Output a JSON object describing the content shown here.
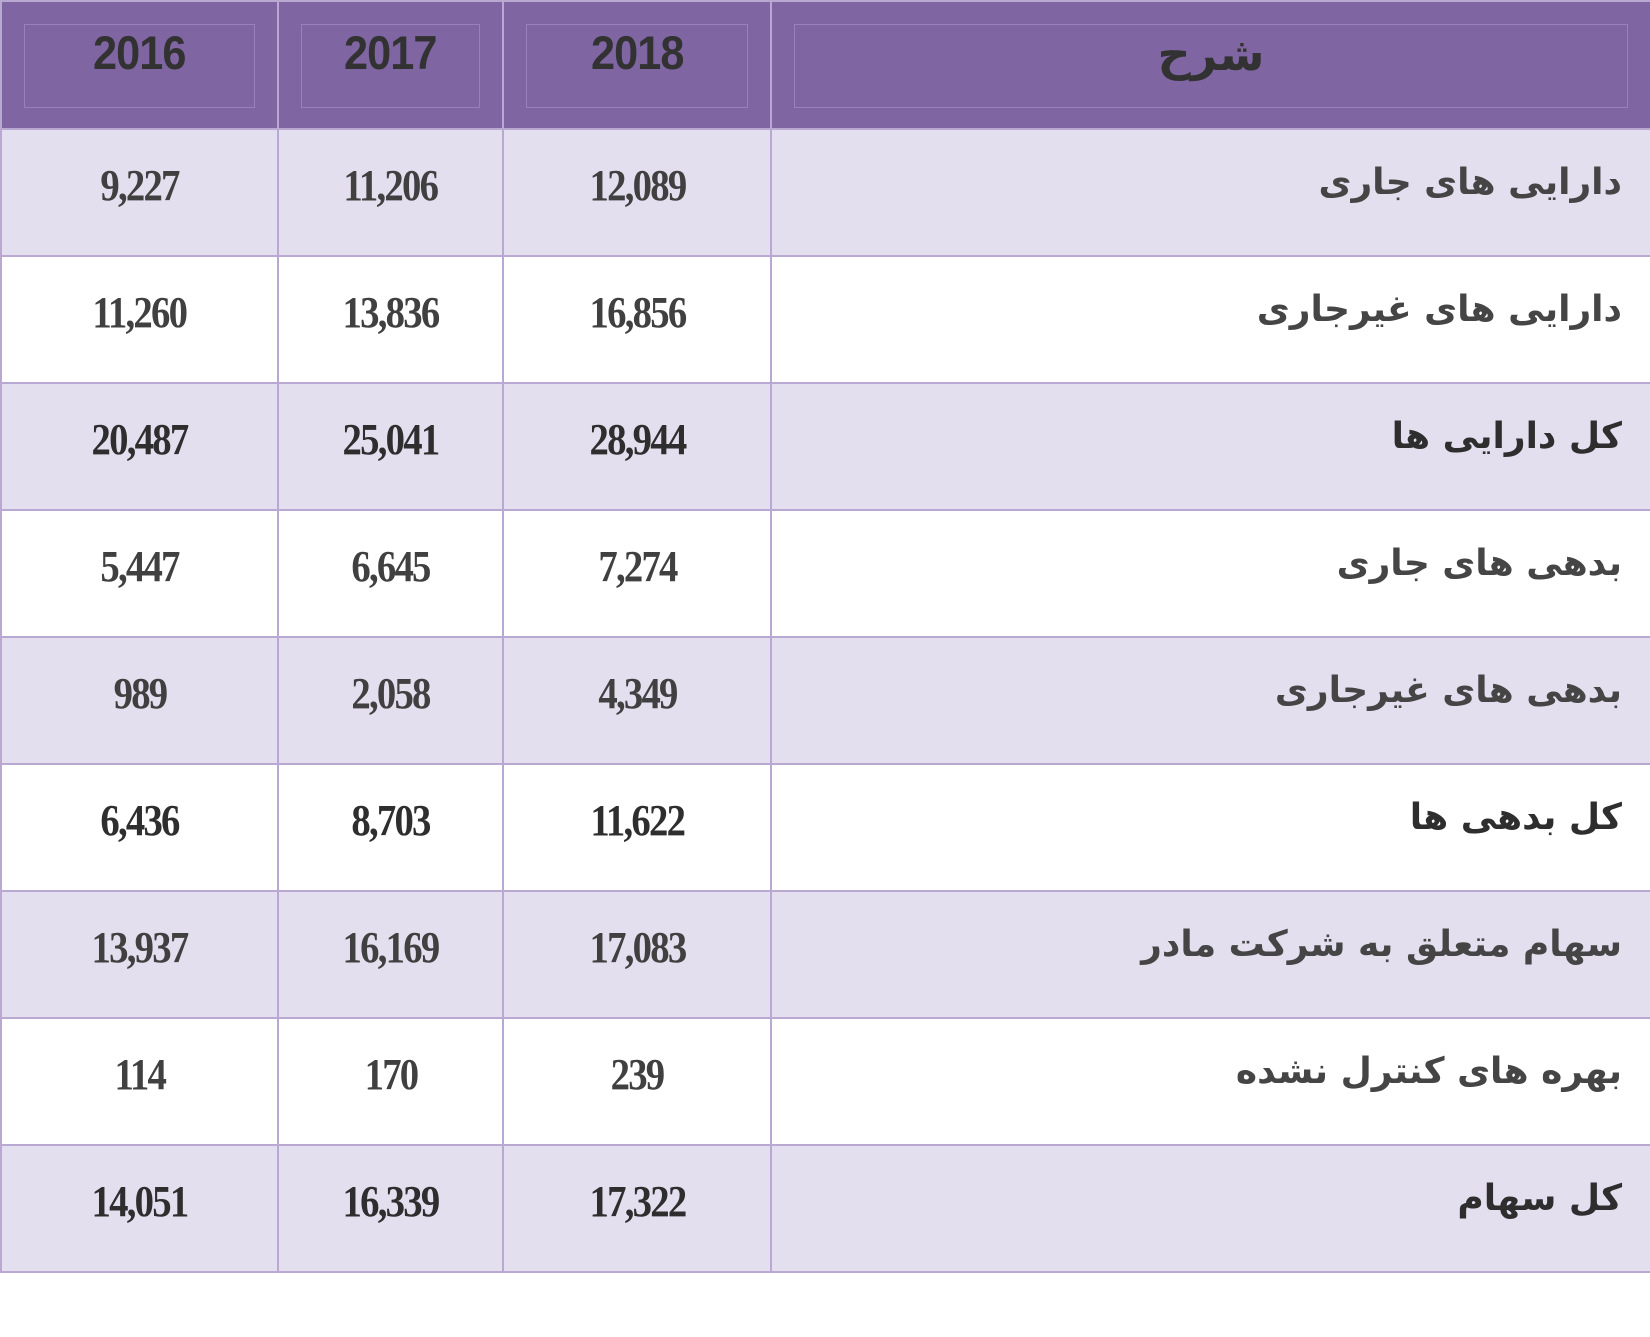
{
  "table": {
    "columns": {
      "y2016": "2016",
      "y2017": "2017",
      "y2018": "2018",
      "description": "شرح"
    },
    "rows": [
      {
        "label": "دارایی های جاری",
        "v2018": "12,089",
        "v2017": "11,206",
        "v2016": "9,227",
        "is_total": false
      },
      {
        "label": "دارایی های غیرجاری",
        "v2018": "16,856",
        "v2017": "13,836",
        "v2016": "11,260",
        "is_total": false
      },
      {
        "label": "کل دارایی ها",
        "v2018": "28,944",
        "v2017": "25,041",
        "v2016": "20,487",
        "is_total": true
      },
      {
        "label": "بدهی های جاری",
        "v2018": "7,274",
        "v2017": "6,645",
        "v2016": "5,447",
        "is_total": false
      },
      {
        "label": "بدهی های غیرجاری",
        "v2018": "4,349",
        "v2017": "2,058",
        "v2016": "989",
        "is_total": false
      },
      {
        "label": "کل بدهی ها",
        "v2018": "11,622",
        "v2017": "8,703",
        "v2016": "6,436",
        "is_total": true
      },
      {
        "label": "سهام متعلق به شرکت مادر",
        "v2018": "17,083",
        "v2017": "16,169",
        "v2016": "13,937",
        "is_total": false
      },
      {
        "label": "بهره های کنترل نشده",
        "v2018": "239",
        "v2017": "170",
        "v2016": "114",
        "is_total": false
      },
      {
        "label": "کل سهام",
        "v2018": "17,322",
        "v2017": "16,339",
        "v2016": "14,051",
        "is_total": true
      }
    ]
  },
  "colors": {
    "header_bg": "#8065a3",
    "row_shaded_bg": "#e4dfee",
    "row_plain_bg": "#ffffff",
    "border": "#b9a9d2",
    "text": "#404040"
  }
}
